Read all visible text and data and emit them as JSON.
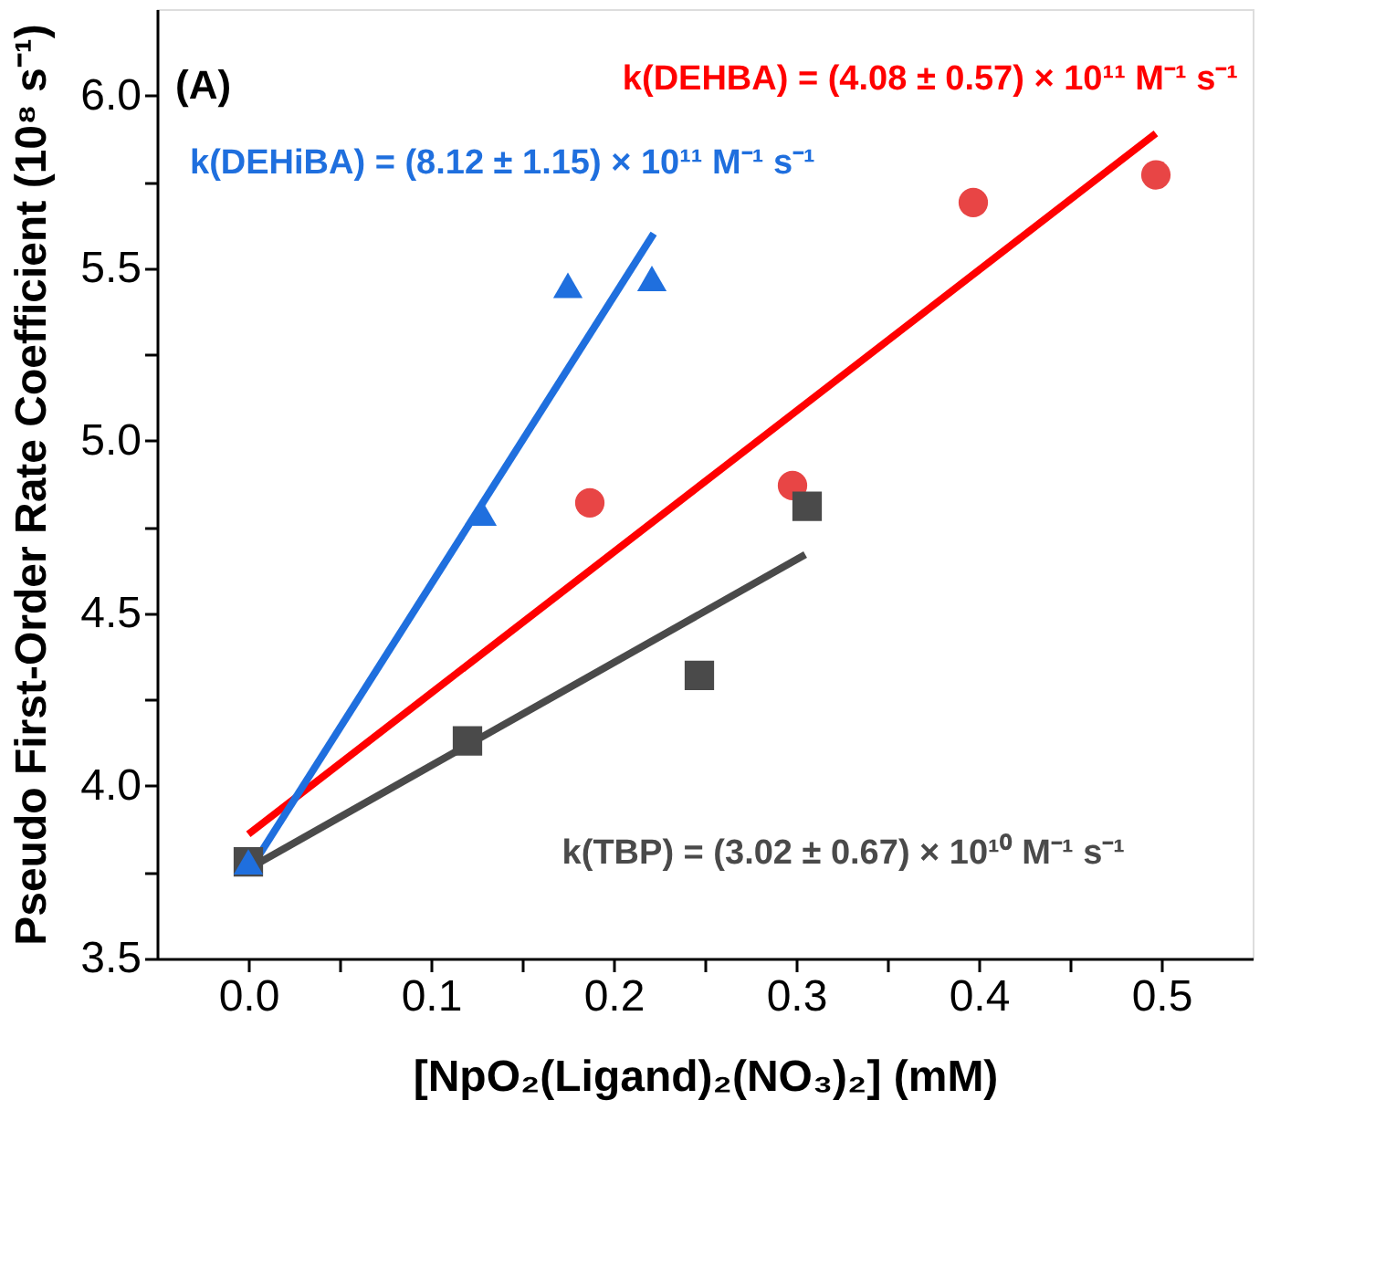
{
  "chart_data": {
    "type": "scatter",
    "xlabel": "[NpO₂(Ligand)₂(NO₃)₂] (mM)",
    "ylabel": "Pseudo First-Order Rate Coefficient (10⁸ s⁻¹)",
    "annotations": [
      "(A)",
      "k(DEHBA) = (4.08 ± 0.57) × 10¹¹ M⁻¹ s⁻¹",
      "k(DEHiBA) = (8.12 ± 1.15) × 10¹¹ M⁻¹ s⁻¹",
      "k(TBP) = (3.02 ± 0.67) × 10¹⁰ M⁻¹ s⁻¹"
    ],
    "xlim": [
      -0.05,
      0.55
    ],
    "ylim": [
      3.5,
      6.25
    ],
    "xticks": [
      {
        "value": 0,
        "label": "0.0"
      },
      {
        "value": 0.05,
        "label": null
      },
      0.1,
      {
        "value": 0.15,
        "label": null
      },
      0.2,
      {
        "value": 0.25,
        "label": null
      },
      0.3,
      {
        "value": 0.35,
        "label": null
      },
      0.4,
      {
        "value": 0.45,
        "label": null
      },
      0.5
    ],
    "yticks": [
      3.5,
      {
        "value": 3.75,
        "label": null
      },
      {
        "value": 4,
        "label": "4.0"
      },
      {
        "value": 4.25,
        "label": null
      },
      4.5,
      {
        "value": 4.75,
        "label": null
      },
      {
        "value": 5,
        "label": "5.0"
      },
      {
        "value": 5.25,
        "label": null
      },
      5.5,
      {
        "value": 5.75,
        "label": null
      },
      {
        "value": 6,
        "label": "6.0"
      }
    ],
    "grid": false,
    "series": [
      {
        "type": "line",
        "color": "#ff0000",
        "x": [
          0.0,
          0.497
        ],
        "values": [
          3.86,
          5.89
        ],
        "marker": "none",
        "line_style": "solid"
      },
      {
        "type": "line",
        "color": "#1f6fde",
        "x": [
          0.0,
          0.222
        ],
        "values": [
          3.75,
          5.6
        ],
        "marker": "none",
        "line_style": "solid"
      },
      {
        "type": "line",
        "color": "#4a4a4a",
        "x": [
          0.0,
          0.305
        ],
        "values": [
          3.76,
          4.67
        ],
        "marker": "none",
        "line_style": "solid"
      },
      {
        "type": "scatter",
        "color": "#e84545",
        "x": [
          0.187,
          0.298,
          0.397,
          0.497
        ],
        "values": [
          4.82,
          4.87,
          5.69,
          5.77
        ],
        "marker": "circle"
      },
      {
        "type": "scatter",
        "color": "#4a4a4a",
        "x": [
          0.0,
          0.12,
          0.247,
          0.306
        ],
        "values": [
          3.78,
          4.13,
          4.32,
          4.81
        ],
        "marker": "square"
      },
      {
        "type": "scatter",
        "color": "#1f6fde",
        "x": [
          0.0,
          0.128,
          0.175,
          0.221
        ],
        "values": [
          3.78,
          4.79,
          5.45,
          5.47
        ],
        "marker": "triangle"
      }
    ]
  }
}
